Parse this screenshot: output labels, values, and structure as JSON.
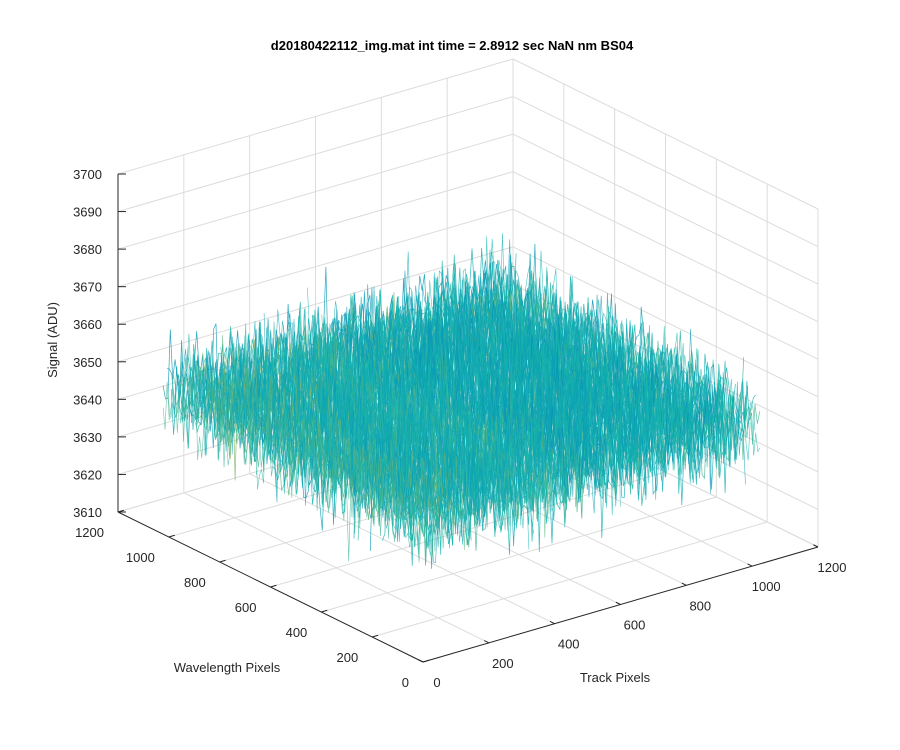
{
  "chart_data": {
    "type": "surface",
    "title": "d20180422112_img.mat int time = 2.8912 sec  NaN nm BS04",
    "xlabel": "Track Pixels",
    "ylabel": "Wavelength Pixels",
    "zlabel": "Signal (ADU)",
    "xlim": [
      0,
      1200
    ],
    "ylim": [
      0,
      1200
    ],
    "zlim": [
      3610,
      3700
    ],
    "x_ticks": [
      "0",
      "200",
      "400",
      "600",
      "800",
      "1000",
      "1200"
    ],
    "y_ticks": [
      "0",
      "200",
      "400",
      "600",
      "800",
      "1000",
      "1200"
    ],
    "z_ticks": [
      "3610",
      "3620",
      "3630",
      "3640",
      "3650",
      "3660",
      "3670",
      "3680",
      "3690",
      "3700"
    ],
    "x_extent": [
      1,
      1024
    ],
    "y_extent": [
      1,
      1024
    ],
    "signal_mean": 3648,
    "signal_min": 3611,
    "signal_max": 3694,
    "grid": true,
    "colormap": "parula",
    "colors": {
      "low": "#0072BD",
      "mid": "#12B5B0",
      "high": "#EDB120",
      "axis": "#262626",
      "grid": "#DCDCDC"
    }
  }
}
